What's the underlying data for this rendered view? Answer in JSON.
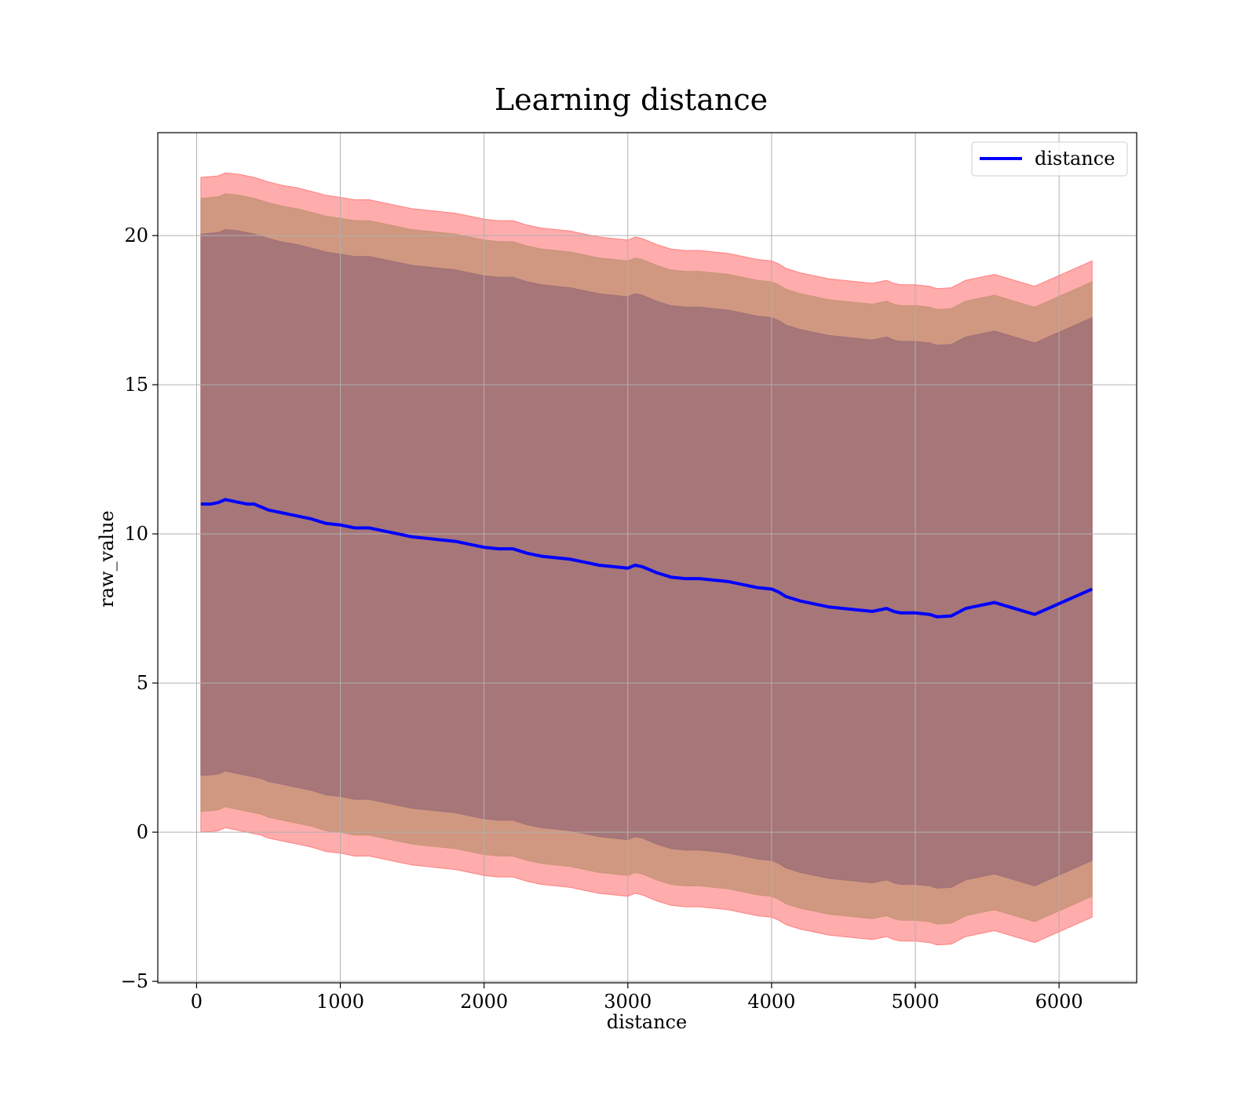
{
  "chart_data": {
    "type": "area",
    "title": "Learning distance",
    "xlabel": "distance",
    "ylabel": "raw_value",
    "xlim": [
      -270,
      6540
    ],
    "ylim": [
      -5.05,
      23.45
    ],
    "xticks": [
      0,
      1000,
      2000,
      3000,
      4000,
      5000,
      6000
    ],
    "xtick_labels": [
      "0",
      "1000",
      "2000",
      "3000",
      "4000",
      "5000",
      "6000"
    ],
    "yticks": [
      -5,
      0,
      5,
      10,
      15,
      20
    ],
    "ytick_labels": [
      "−5",
      "0",
      "5",
      "10",
      "15",
      "20"
    ],
    "grid": true,
    "legend": {
      "position": "top-right",
      "entries": [
        "distance"
      ]
    },
    "colors": {
      "line": "#0000ff",
      "band_outer": "#ff7f7f",
      "band_middle": "#c89478",
      "band_inner": "#a07078",
      "grid": "#b0b0b0"
    },
    "x": [
      30,
      100,
      150,
      200,
      250,
      300,
      350,
      400,
      450,
      500,
      600,
      700,
      800,
      900,
      1000,
      1100,
      1200,
      1300,
      1400,
      1500,
      1600,
      1700,
      1800,
      1900,
      2000,
      2100,
      2200,
      2300,
      2400,
      2500,
      2600,
      2700,
      2800,
      2900,
      3000,
      3050,
      3100,
      3200,
      3300,
      3400,
      3500,
      3600,
      3700,
      3800,
      3900,
      4000,
      4050,
      4100,
      4200,
      4300,
      4400,
      4500,
      4600,
      4700,
      4750,
      4800,
      4850,
      4900,
      5000,
      5100,
      5150,
      5250,
      5350,
      5550,
      5830,
      6230
    ],
    "series": [
      {
        "name": "distance",
        "values": [
          11.0,
          11.0,
          11.05,
          11.15,
          11.1,
          11.05,
          11.0,
          11.0,
          10.9,
          10.8,
          10.7,
          10.6,
          10.5,
          10.35,
          10.3,
          10.2,
          10.2,
          10.1,
          10.0,
          9.9,
          9.85,
          9.8,
          9.75,
          9.65,
          9.55,
          9.5,
          9.5,
          9.35,
          9.25,
          9.2,
          9.15,
          9.05,
          8.95,
          8.9,
          8.85,
          8.95,
          8.9,
          8.7,
          8.55,
          8.5,
          8.5,
          8.45,
          8.4,
          8.3,
          8.2,
          8.15,
          8.05,
          7.9,
          7.75,
          7.65,
          7.55,
          7.5,
          7.45,
          7.4,
          7.45,
          7.5,
          7.4,
          7.35,
          7.35,
          7.3,
          7.22,
          7.25,
          7.5,
          7.7,
          7.3,
          8.15
        ]
      },
      {
        "upper": [
          20.05,
          20.08,
          20.1,
          20.2,
          20.18,
          20.15,
          20.1,
          20.05,
          19.98,
          19.9,
          19.78,
          19.7,
          19.58,
          19.45,
          19.38,
          19.3,
          19.3,
          19.2,
          19.1,
          19.0,
          18.95,
          18.9,
          18.85,
          18.75,
          18.65,
          18.6,
          18.6,
          18.45,
          18.35,
          18.3,
          18.25,
          18.15,
          18.05,
          18.0,
          17.95,
          18.05,
          18.0,
          17.8,
          17.65,
          17.6,
          17.6,
          17.55,
          17.5,
          17.4,
          17.3,
          17.25,
          17.15,
          17.0,
          16.85,
          16.75,
          16.65,
          16.6,
          16.55,
          16.5,
          16.55,
          16.6,
          16.5,
          16.45,
          16.45,
          16.4,
          16.32,
          16.35,
          16.6,
          16.8,
          16.4,
          17.25
        ],
        "lower": [
          1.9,
          1.92,
          1.95,
          2.05,
          2.0,
          1.95,
          1.9,
          1.85,
          1.8,
          1.7,
          1.6,
          1.5,
          1.4,
          1.25,
          1.2,
          1.1,
          1.1,
          1.0,
          0.9,
          0.8,
          0.75,
          0.7,
          0.65,
          0.55,
          0.45,
          0.4,
          0.4,
          0.25,
          0.15,
          0.1,
          0.05,
          -0.05,
          -0.15,
          -0.2,
          -0.25,
          -0.15,
          -0.2,
          -0.4,
          -0.55,
          -0.6,
          -0.6,
          -0.65,
          -0.7,
          -0.8,
          -0.9,
          -0.95,
          -1.05,
          -1.2,
          -1.35,
          -1.45,
          -1.55,
          -1.6,
          -1.65,
          -1.7,
          -1.65,
          -1.6,
          -1.7,
          -1.75,
          -1.75,
          -1.8,
          -1.88,
          -1.85,
          -1.6,
          -1.4,
          -1.8,
          -0.95
        ]
      },
      {
        "upper": [
          21.25,
          21.28,
          21.3,
          21.4,
          21.38,
          21.35,
          21.3,
          21.25,
          21.18,
          21.1,
          20.98,
          20.9,
          20.78,
          20.65,
          20.58,
          20.5,
          20.5,
          20.4,
          20.3,
          20.2,
          20.15,
          20.1,
          20.05,
          19.95,
          19.85,
          19.8,
          19.8,
          19.65,
          19.55,
          19.5,
          19.45,
          19.35,
          19.25,
          19.2,
          19.15,
          19.25,
          19.2,
          19.0,
          18.85,
          18.8,
          18.8,
          18.75,
          18.7,
          18.6,
          18.5,
          18.45,
          18.35,
          18.2,
          18.05,
          17.95,
          17.85,
          17.8,
          17.75,
          17.7,
          17.75,
          17.8,
          17.7,
          17.65,
          17.65,
          17.6,
          17.52,
          17.55,
          17.8,
          18.0,
          17.6,
          18.45
        ],
        "lower": [
          0.7,
          0.72,
          0.75,
          0.85,
          0.8,
          0.75,
          0.7,
          0.65,
          0.6,
          0.5,
          0.4,
          0.3,
          0.2,
          0.05,
          0.0,
          -0.1,
          -0.1,
          -0.2,
          -0.3,
          -0.4,
          -0.45,
          -0.5,
          -0.55,
          -0.65,
          -0.75,
          -0.8,
          -0.8,
          -0.95,
          -1.05,
          -1.1,
          -1.15,
          -1.25,
          -1.35,
          -1.4,
          -1.45,
          -1.35,
          -1.4,
          -1.6,
          -1.75,
          -1.8,
          -1.8,
          -1.85,
          -1.9,
          -2.0,
          -2.1,
          -2.15,
          -2.25,
          -2.4,
          -2.55,
          -2.65,
          -2.75,
          -2.8,
          -2.85,
          -2.9,
          -2.85,
          -2.8,
          -2.9,
          -2.95,
          -2.95,
          -3.0,
          -3.08,
          -3.05,
          -2.8,
          -2.6,
          -3.0,
          -2.15
        ]
      },
      {
        "upper": [
          21.95,
          21.98,
          22.0,
          22.1,
          22.08,
          22.05,
          22.0,
          21.95,
          21.88,
          21.8,
          21.68,
          21.6,
          21.48,
          21.35,
          21.28,
          21.2,
          21.2,
          21.1,
          21.0,
          20.9,
          20.85,
          20.8,
          20.75,
          20.65,
          20.55,
          20.5,
          20.5,
          20.35,
          20.25,
          20.2,
          20.15,
          20.05,
          19.95,
          19.9,
          19.85,
          19.95,
          19.9,
          19.7,
          19.55,
          19.5,
          19.5,
          19.45,
          19.4,
          19.3,
          19.2,
          19.15,
          19.05,
          18.9,
          18.75,
          18.65,
          18.55,
          18.5,
          18.45,
          18.4,
          18.45,
          18.5,
          18.4,
          18.35,
          18.35,
          18.3,
          18.22,
          18.25,
          18.5,
          18.7,
          18.3,
          19.15
        ],
        "lower": [
          0.0,
          0.02,
          0.05,
          0.15,
          0.1,
          0.05,
          0.0,
          -0.05,
          -0.1,
          -0.2,
          -0.3,
          -0.4,
          -0.5,
          -0.65,
          -0.7,
          -0.8,
          -0.8,
          -0.9,
          -1.0,
          -1.1,
          -1.15,
          -1.2,
          -1.25,
          -1.35,
          -1.45,
          -1.5,
          -1.5,
          -1.65,
          -1.75,
          -1.8,
          -1.85,
          -1.95,
          -2.05,
          -2.1,
          -2.15,
          -2.05,
          -2.1,
          -2.3,
          -2.45,
          -2.5,
          -2.5,
          -2.55,
          -2.6,
          -2.7,
          -2.8,
          -2.85,
          -2.95,
          -3.1,
          -3.25,
          -3.35,
          -3.45,
          -3.5,
          -3.55,
          -3.6,
          -3.55,
          -3.5,
          -3.6,
          -3.65,
          -3.65,
          -3.7,
          -3.78,
          -3.75,
          -3.5,
          -3.3,
          -3.7,
          -2.85
        ]
      }
    ]
  }
}
